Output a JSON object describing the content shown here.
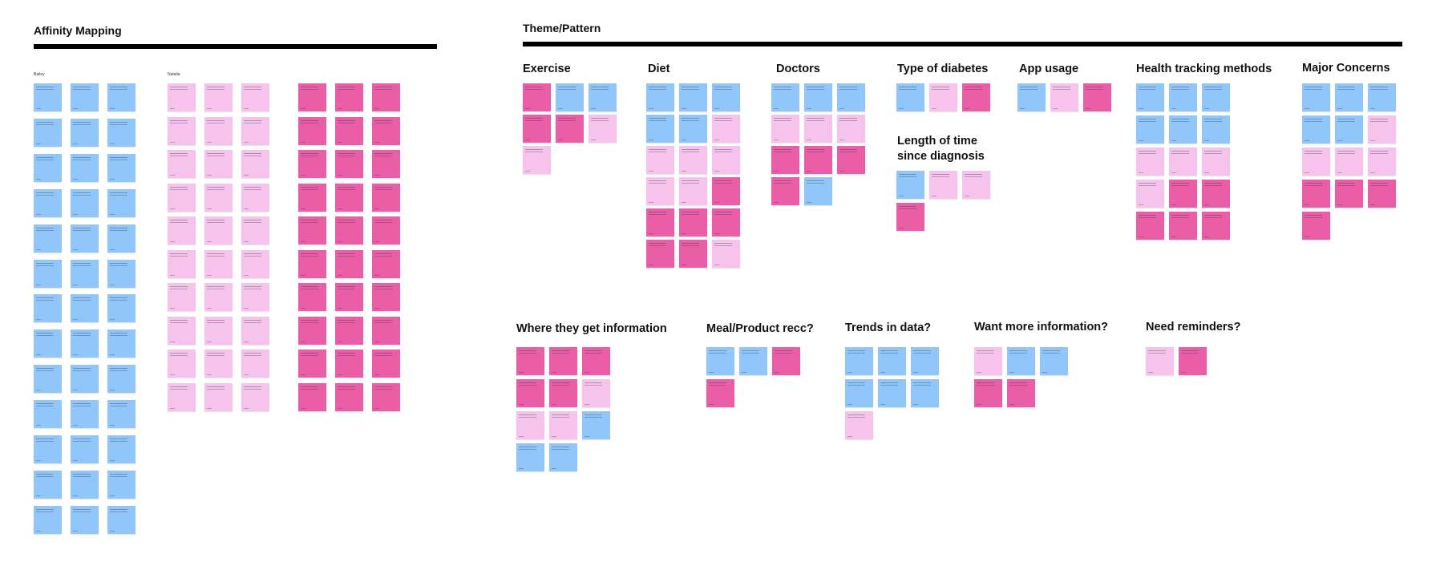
{
  "left_section": {
    "title": "Affinity Mapping",
    "participants": [
      "Bailey",
      "Natalia"
    ]
  },
  "right_section": {
    "title": "Theme/Pattern",
    "groups": [
      {
        "title": "Exercise"
      },
      {
        "title": "Diet"
      },
      {
        "title": "Doctors"
      },
      {
        "title": "Type of diabetes"
      },
      {
        "title": "App usage"
      },
      {
        "title": "Health tracking methods"
      },
      {
        "title": "Major Concerns"
      },
      {
        "title": "Length of time since diagnosis"
      },
      {
        "title": "Where they get information"
      },
      {
        "title": "Meal/Product recc?"
      },
      {
        "title": "Trends in data?"
      },
      {
        "title": "Want more information?"
      },
      {
        "title": "Need reminders?"
      }
    ]
  },
  "note_colors": {
    "blue": "#90c6f9",
    "light_pink": "#f6c3ec",
    "magenta": "#ea5ea8"
  }
}
